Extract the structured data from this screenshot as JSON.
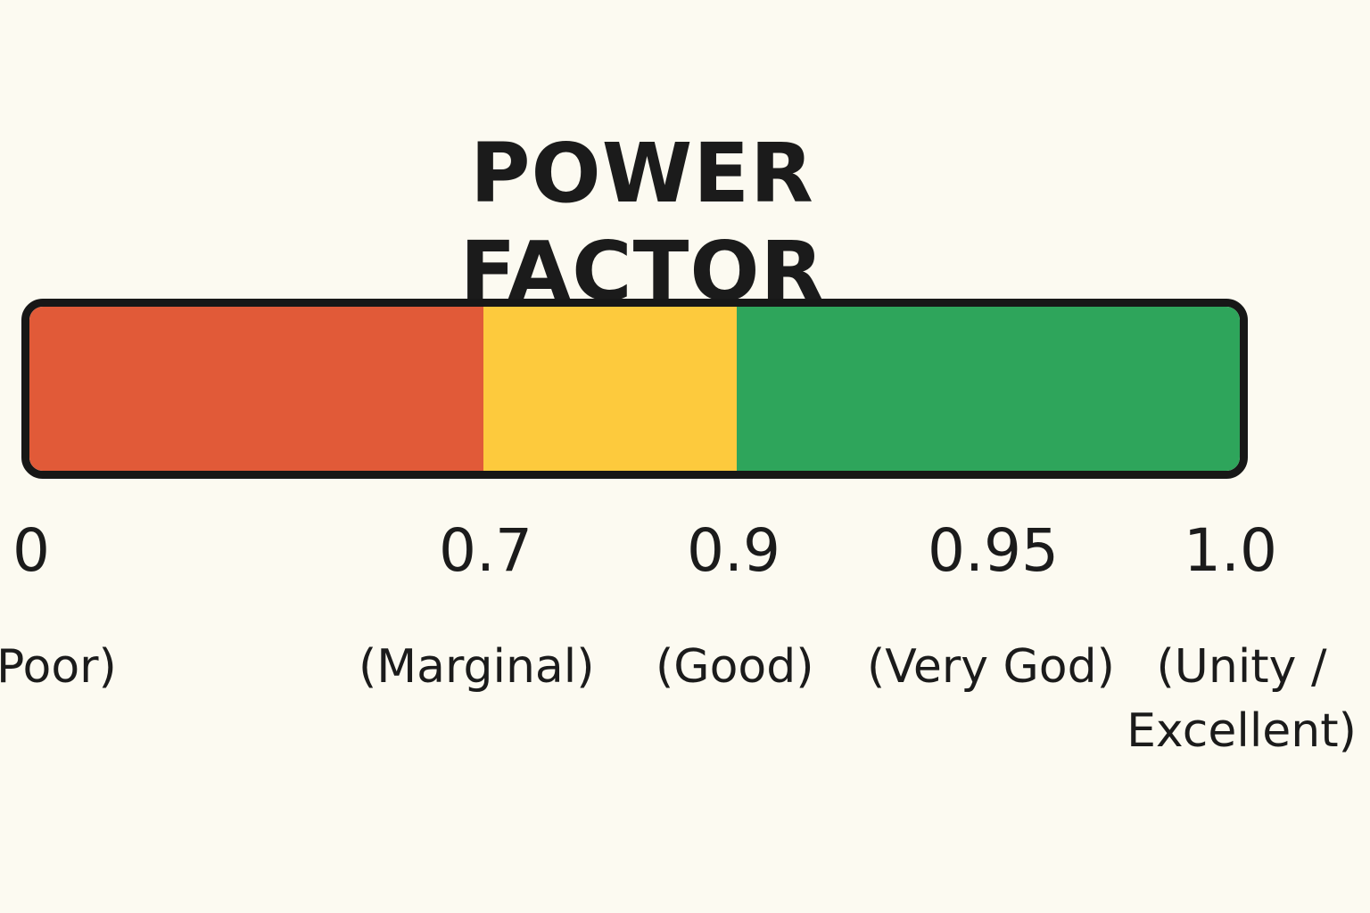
{
  "title": "POWER FACTOR",
  "scale": {
    "min": 0,
    "max": 1.0,
    "bands": [
      {
        "name": "poor",
        "from": 0,
        "to": 0.7,
        "color": "#e15a38"
      },
      {
        "name": "marginal",
        "from": 0.7,
        "to": 0.9,
        "color": "#fdca3d"
      },
      {
        "name": "good",
        "from": 0.9,
        "to": 1.0,
        "color": "#2ea55b"
      }
    ],
    "border_color": "#171717"
  },
  "ticks": [
    {
      "value": "0",
      "rating": "Poor)"
    },
    {
      "value": "0.7",
      "rating": "(Marginal)"
    },
    {
      "value": "0.9",
      "rating": "(Good)"
    },
    {
      "value": "0.95",
      "rating": "(Very God)"
    },
    {
      "value": "1.0",
      "rating": "(Unity / Excellent)"
    }
  ]
}
